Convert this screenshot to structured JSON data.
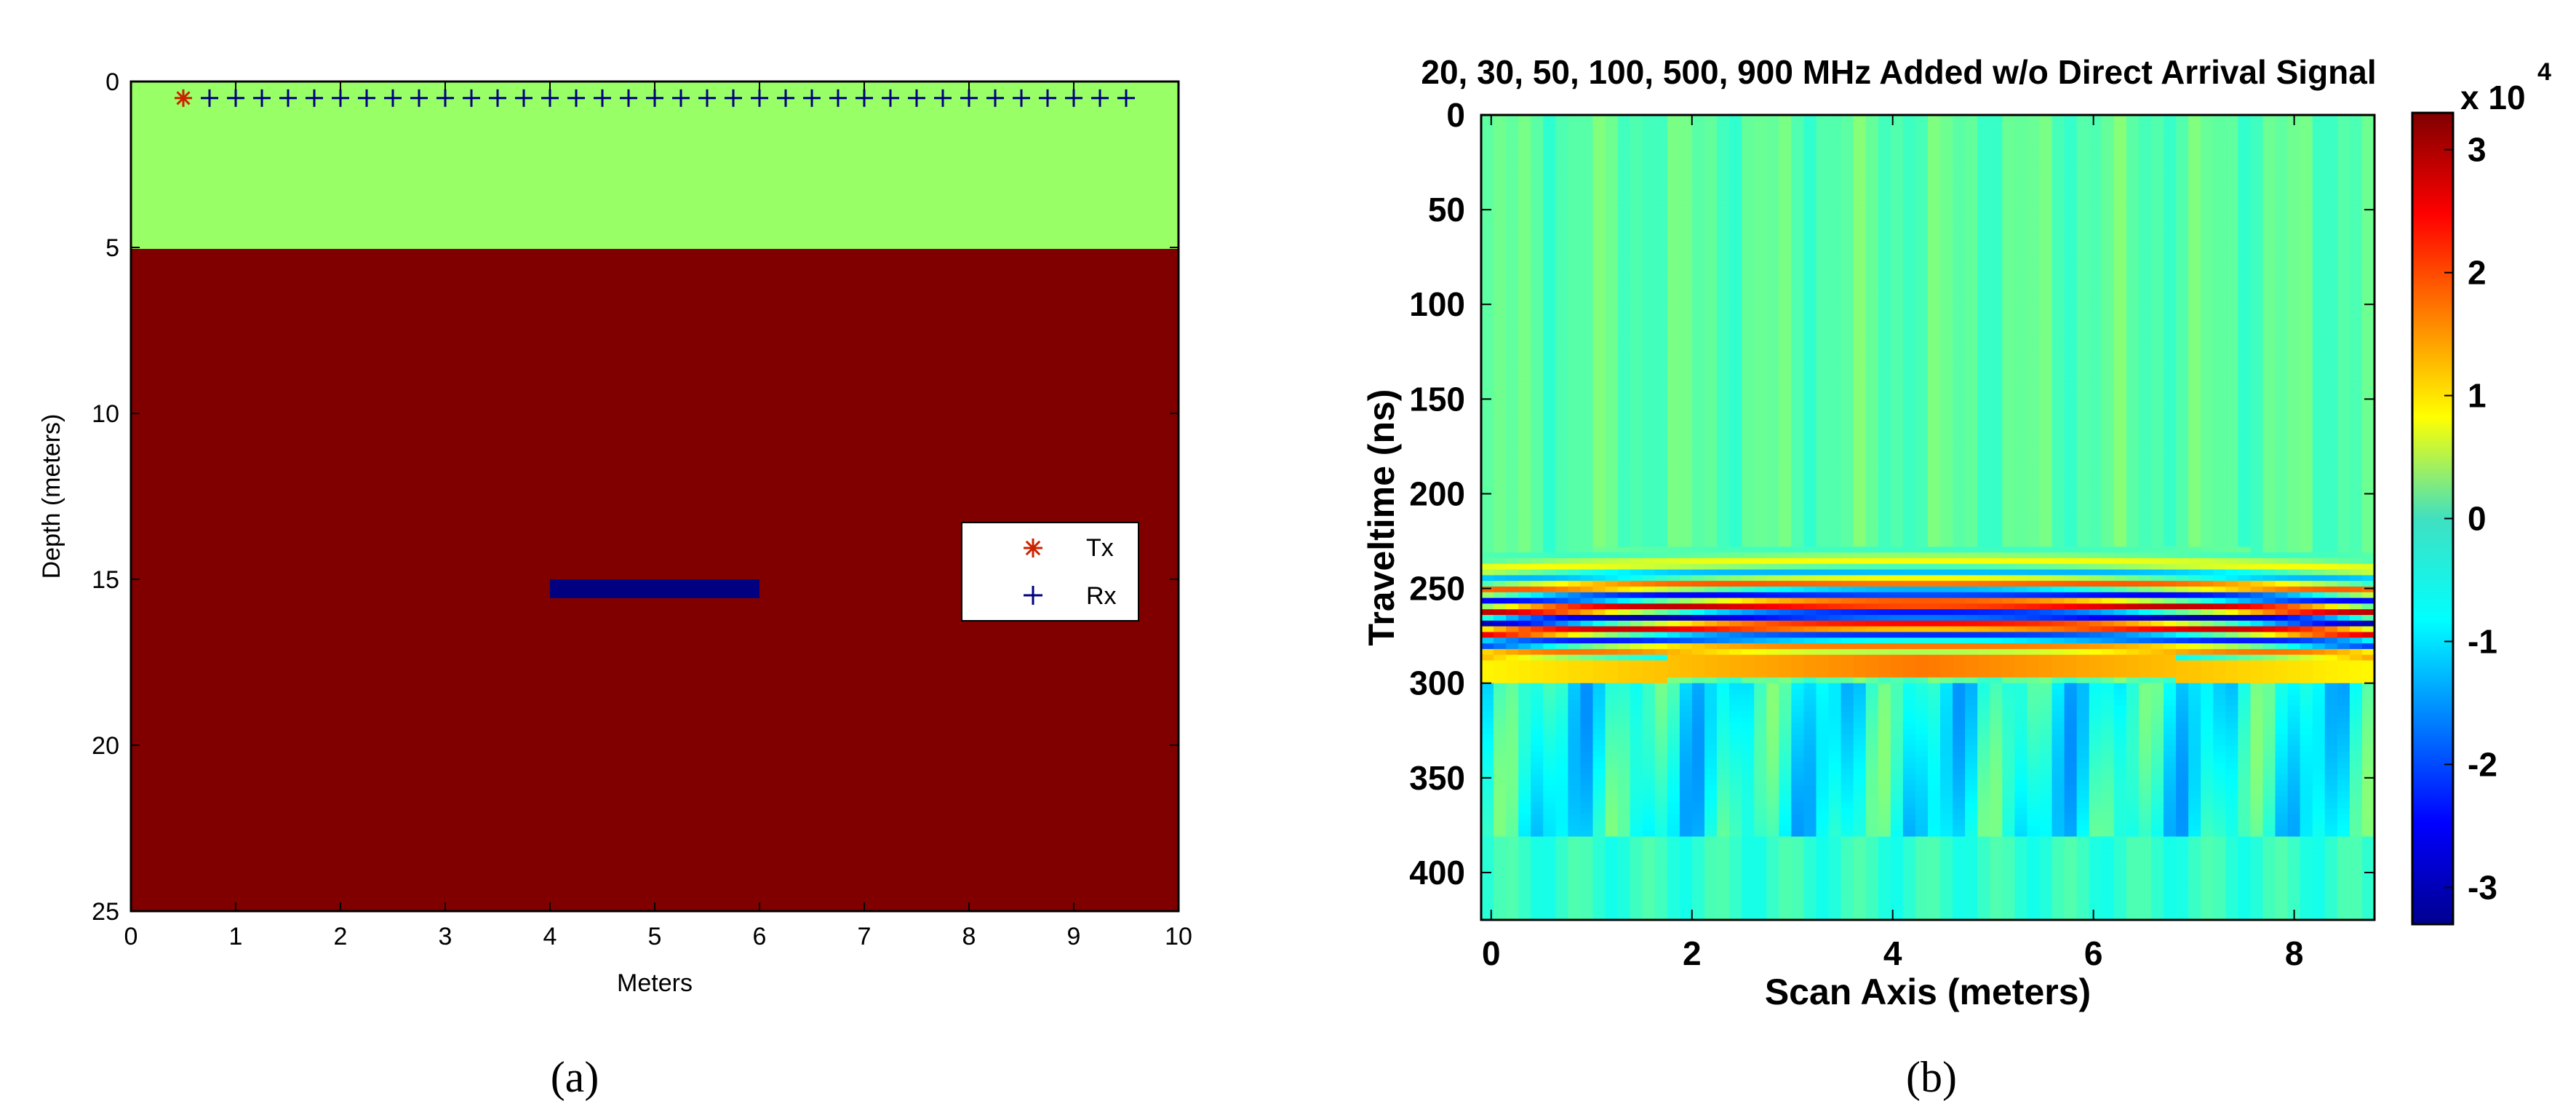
{
  "panels": {
    "a": "(a)",
    "b": "(b)"
  },
  "chart_data": [
    {
      "type": "scatter",
      "panel": "(a)",
      "title": "",
      "xlabel": "Meters",
      "ylabel": "Depth (meters)",
      "xlim": [
        0,
        10
      ],
      "ylim": [
        25,
        0
      ],
      "x_ticks": [
        "0",
        "1",
        "2",
        "3",
        "4",
        "5",
        "6",
        "7",
        "8",
        "9",
        "10"
      ],
      "y_ticks": [
        "0",
        "5",
        "10",
        "15",
        "20",
        "25"
      ],
      "layers": [
        {
          "name": "upper layer",
          "depth_from": 0,
          "depth_to": 5,
          "color": "#99ff66"
        },
        {
          "name": "lower layer",
          "depth_from": 5,
          "depth_to": 25,
          "color": "#800000"
        }
      ],
      "target": {
        "x_from": 4.0,
        "x_to": 6.0,
        "depth": 15.2,
        "color": "#000080"
      },
      "series": [
        {
          "name": "Tx",
          "marker": "*",
          "color": "#cc2200",
          "x": [
            0.5
          ],
          "y": [
            0.5
          ]
        },
        {
          "name": "Rx",
          "marker": "+",
          "color": "#000080",
          "x": [
            0.75,
            1.0,
            1.25,
            1.5,
            1.75,
            2.0,
            2.25,
            2.5,
            2.75,
            3.0,
            3.25,
            3.5,
            3.75,
            4.0,
            4.25,
            4.5,
            4.75,
            5.0,
            5.25,
            5.5,
            5.75,
            6.0,
            6.25,
            6.5,
            6.75,
            7.0,
            7.25,
            7.5,
            7.75,
            8.0,
            8.25,
            8.5,
            8.75,
            9.0,
            9.25,
            9.5
          ],
          "y": [
            0.5,
            0.5,
            0.5,
            0.5,
            0.5,
            0.5,
            0.5,
            0.5,
            0.5,
            0.5,
            0.5,
            0.5,
            0.5,
            0.5,
            0.5,
            0.5,
            0.5,
            0.5,
            0.5,
            0.5,
            0.5,
            0.5,
            0.5,
            0.5,
            0.5,
            0.5,
            0.5,
            0.5,
            0.5,
            0.5,
            0.5,
            0.5,
            0.5,
            0.5,
            0.5,
            0.5
          ]
        }
      ],
      "legend": {
        "placement": "right",
        "entries": [
          "Tx",
          "Rx"
        ]
      }
    },
    {
      "type": "heatmap",
      "panel": "(b)",
      "title": "20, 30, 50, 100, 500, 900 MHz Added w/o Direct Arrival Signal",
      "xlabel": "Scan Axis (meters)",
      "ylabel": "Traveltime (ns)",
      "xlim": [
        -0.1,
        8.8
      ],
      "ylim": [
        425,
        0
      ],
      "x_ticks": [
        "0",
        "2",
        "4",
        "6",
        "8"
      ],
      "y_ticks": [
        "0",
        "50",
        "100",
        "150",
        "200",
        "250",
        "300",
        "350",
        "400"
      ],
      "colorbar": {
        "ticks": [
          "3",
          "2",
          "1",
          "0",
          "-1",
          "-2",
          "-3"
        ],
        "range": [
          -3.3,
          3.3
        ],
        "exponent_base": "x 10",
        "exponent_power": "4",
        "colormap": "jet"
      },
      "reflection": {
        "apex_x": 4.3,
        "apex_time": 235,
        "edge_time": 240,
        "band_bottom": 300
      }
    }
  ]
}
